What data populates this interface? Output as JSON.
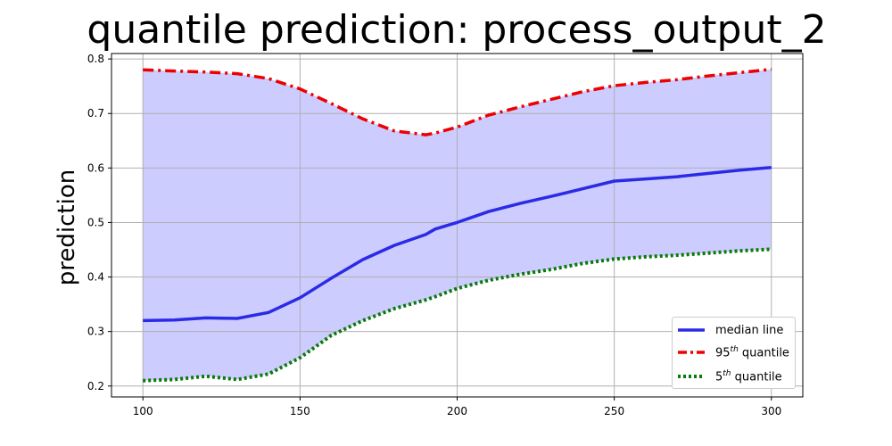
{
  "chart_data": {
    "type": "line",
    "title": "quantile prediction: process_output_2",
    "xlabel": "",
    "ylabel": "prediction",
    "xlim": [
      90,
      310
    ],
    "ylim": [
      0.18,
      0.81
    ],
    "x_ticks": [
      100,
      150,
      200,
      250,
      300
    ],
    "y_ticks": [
      0.2,
      0.3,
      0.4,
      0.5,
      0.6,
      0.7,
      0.8
    ],
    "x_tick_labels": [
      "100",
      "150",
      "200",
      "250",
      "300"
    ],
    "y_tick_labels": [
      "0.2",
      "0.3",
      "0.4",
      "0.5",
      "0.6",
      "0.7",
      "0.8"
    ],
    "grid": true,
    "legend_position": "bottom-right",
    "x": [
      100,
      110,
      120,
      130,
      140,
      150,
      160,
      170,
      180,
      190,
      193,
      200,
      210,
      220,
      230,
      240,
      250,
      260,
      270,
      280,
      290,
      300
    ],
    "band": {
      "lower": "5th quantile",
      "upper": "95th quantile",
      "color": "#ccccff"
    },
    "series": [
      {
        "name": "median line",
        "style": "solid",
        "color": "#2b2be6",
        "values": [
          0.32,
          0.321,
          0.325,
          0.324,
          0.335,
          0.362,
          0.398,
          0.432,
          0.458,
          0.478,
          0.488,
          0.5,
          0.52,
          0.535,
          0.548,
          0.562,
          0.576,
          0.58,
          0.584,
          0.59,
          0.596,
          0.601
        ]
      },
      {
        "name": "95th quantile",
        "name_base": "95",
        "name_sup": "th",
        "name_rest": " quantile",
        "style": "dashdot",
        "color": "#ee0000",
        "values": [
          0.78,
          0.778,
          0.776,
          0.773,
          0.764,
          0.745,
          0.718,
          0.69,
          0.668,
          0.661,
          0.664,
          0.675,
          0.697,
          0.712,
          0.726,
          0.74,
          0.751,
          0.757,
          0.762,
          0.769,
          0.775,
          0.781
        ]
      },
      {
        "name": "5th quantile",
        "name_base": "5",
        "name_sup": "th",
        "name_rest": " quantile",
        "style": "dotted",
        "color": "#0a7a0a",
        "values": [
          0.21,
          0.212,
          0.218,
          0.212,
          0.222,
          0.252,
          0.293,
          0.32,
          0.342,
          0.358,
          0.364,
          0.379,
          0.394,
          0.405,
          0.414,
          0.425,
          0.433,
          0.437,
          0.44,
          0.444,
          0.448,
          0.451
        ]
      }
    ]
  }
}
